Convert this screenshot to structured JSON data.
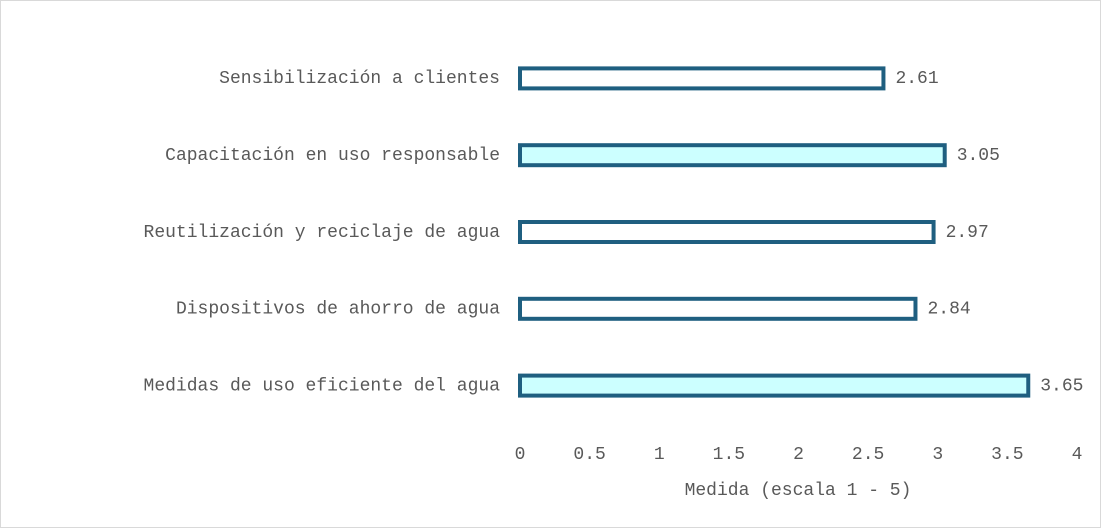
{
  "chart_data": {
    "type": "barh",
    "categories": [
      "Sensibilización a clientes",
      "Capacitación en uso responsable",
      "Reutilización y reciclaje de agua",
      "Dispositivos de ahorro de agua",
      "Medidas de uso eficiente del agua"
    ],
    "values": [
      2.61,
      3.05,
      2.97,
      2.84,
      3.65
    ],
    "colors": [
      "#ffffff",
      "#ccffff",
      "#ffffff",
      "#ffffff",
      "#ccffff"
    ],
    "edgecolor": "#1f5f80",
    "xlabel": "Medida (escala 1 - 5)",
    "xlim": [
      0,
      4
    ],
    "xticks": [
      0,
      0.5,
      1,
      1.5,
      2,
      2.5,
      3,
      3.5,
      4
    ],
    "grid": false
  }
}
